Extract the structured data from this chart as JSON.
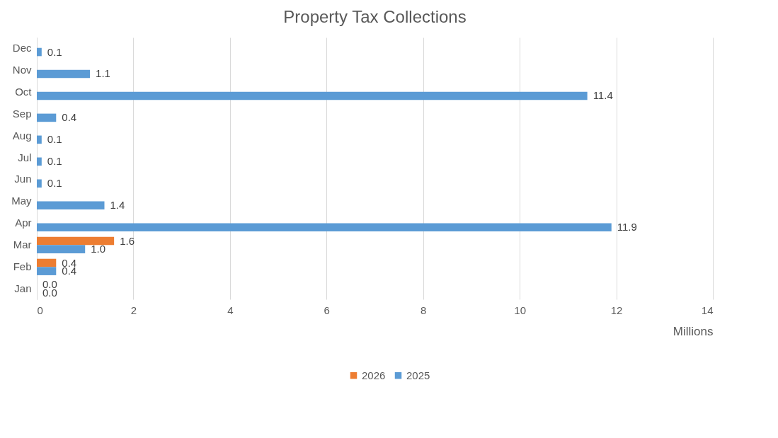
{
  "chart_data": {
    "type": "bar",
    "title": "Property Tax Collections",
    "orientation": "horizontal",
    "xlabel": "Millions",
    "categories": [
      "Dec",
      "Nov",
      "Oct",
      "Sep",
      "Aug",
      "Jul",
      "Jun",
      "May",
      "Apr",
      "Mar",
      "Feb",
      "Jan"
    ],
    "series": [
      {
        "name": "2026",
        "color": "#ed7d31",
        "values": [
          null,
          null,
          null,
          null,
          null,
          null,
          null,
          null,
          null,
          1.6,
          0.4,
          0.0
        ],
        "value_labels": [
          null,
          null,
          null,
          null,
          null,
          null,
          null,
          null,
          null,
          "1.6",
          "0.4",
          "0.0"
        ]
      },
      {
        "name": "2025",
        "color": "#5b9bd5",
        "values": [
          0.1,
          1.1,
          11.4,
          0.4,
          0.1,
          0.1,
          0.1,
          1.4,
          11.9,
          1.0,
          0.4,
          0.0
        ],
        "value_labels": [
          "0.1",
          "1.1",
          "11.4",
          "0.4",
          "0.1",
          "0.1",
          "0.1",
          "1.4",
          "11.9",
          "1.0",
          "0.4",
          "0.0"
        ]
      }
    ],
    "xlim": [
      0,
      14
    ],
    "xticks": [
      0,
      2,
      4,
      6,
      8,
      10,
      12,
      14
    ],
    "grid": "x",
    "legend": "bottom"
  }
}
